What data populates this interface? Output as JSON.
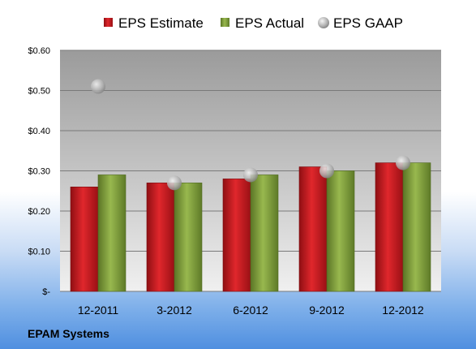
{
  "company": "EPAM Systems",
  "colors": {
    "estimate": "#c8191f",
    "actual": "#7e9e38",
    "gaap": "#b0b0b0"
  },
  "chart_data": {
    "type": "bar",
    "categories": [
      "12-2011",
      "3-2012",
      "6-2012",
      "9-2012",
      "12-2012"
    ],
    "series": [
      {
        "name": "EPS Estimate",
        "kind": "bar",
        "values": [
          0.26,
          0.27,
          0.28,
          0.31,
          0.32
        ]
      },
      {
        "name": "EPS Actual",
        "kind": "bar",
        "values": [
          0.29,
          0.27,
          0.29,
          0.3,
          0.32
        ]
      },
      {
        "name": "EPS GAAP",
        "kind": "scatter",
        "values": [
          0.51,
          0.27,
          0.29,
          0.3,
          0.32
        ]
      }
    ],
    "ylim": [
      0,
      0.6
    ],
    "yticks": [
      0,
      0.1,
      0.2,
      0.3,
      0.4,
      0.5,
      0.6
    ],
    "ytick_labels": [
      "$-",
      "$0.10",
      "$0.20",
      "$0.30",
      "$0.40",
      "$0.50",
      "$0.60"
    ],
    "legend_position": "top",
    "grid": true
  }
}
